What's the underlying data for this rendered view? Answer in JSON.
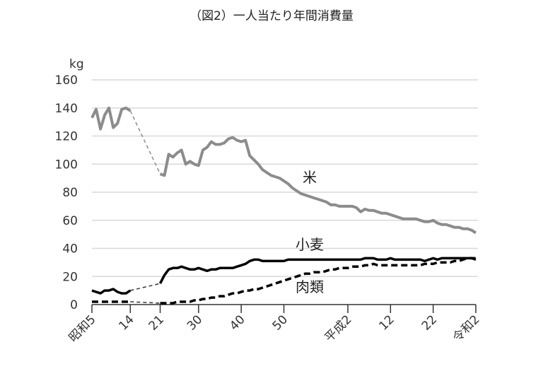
{
  "chart_data": {
    "type": "line",
    "title": "（図2）一人当たり年間消費量",
    "ylabel": "kg",
    "xlabel": "",
    "ylim": [
      0,
      160
    ],
    "yticks": [
      0,
      20,
      40,
      60,
      80,
      100,
      120,
      140,
      160
    ],
    "xlim": [
      1930,
      2020
    ],
    "xticks": [
      {
        "year": 1930,
        "label": "昭和5"
      },
      {
        "year": 1939,
        "label": "14"
      },
      {
        "year": 1946,
        "label": "21"
      },
      {
        "year": 1955,
        "label": "30"
      },
      {
        "year": 1965,
        "label": "40"
      },
      {
        "year": 1975,
        "label": "50"
      },
      {
        "year": 1990,
        "label": "平成2"
      },
      {
        "year": 2000,
        "label": "12"
      },
      {
        "year": 2010,
        "label": "22"
      },
      {
        "year": 2020,
        "label": "令和2"
      }
    ],
    "grid": true,
    "gap": [
      1939,
      1946
    ],
    "series": [
      {
        "name": "米",
        "color": "#8c8c8c",
        "style": "solid",
        "prewar": [
          133,
          139,
          125,
          135,
          140,
          126,
          129,
          139,
          140,
          138
        ],
        "postwar": [
          93,
          92,
          107,
          105,
          108,
          110,
          100,
          102,
          100,
          99,
          110,
          112,
          116,
          114,
          114,
          115,
          118,
          119,
          117,
          116,
          117,
          106,
          103,
          100,
          96,
          94,
          92,
          91,
          90,
          88,
          86,
          83,
          81,
          79,
          78,
          77,
          76,
          75,
          74,
          73,
          71,
          71,
          70,
          70,
          70,
          70,
          69,
          66,
          68,
          67,
          67,
          66,
          65,
          65,
          64,
          63,
          62,
          61,
          61,
          61,
          61,
          60,
          59,
          59,
          60,
          58,
          57,
          57,
          56,
          55,
          55,
          54,
          54,
          53,
          51
        ]
      },
      {
        "name": "小麦",
        "color": "#000000",
        "style": "solid",
        "prewar": [
          10,
          9,
          8,
          10,
          10,
          11,
          9,
          8,
          8,
          10
        ],
        "postwar": [
          15,
          21,
          25,
          26,
          26,
          27,
          26,
          25,
          25,
          26,
          25,
          24,
          25,
          25,
          26,
          26,
          26,
          26,
          27,
          28,
          29,
          31,
          32,
          32,
          31,
          31,
          31,
          31,
          31,
          31,
          32,
          32,
          32,
          32,
          32,
          32,
          32,
          32,
          32,
          32,
          32,
          32,
          32,
          32,
          32,
          32,
          32,
          32,
          33,
          33,
          33,
          32,
          32,
          32,
          33,
          32,
          32,
          32,
          32,
          32,
          32,
          32,
          31,
          32,
          33,
          32,
          33,
          33,
          33,
          33,
          33,
          33,
          33,
          33,
          32
        ]
      },
      {
        "name": "肉類",
        "color": "#000000",
        "style": "dashed",
        "prewar": [
          2,
          2,
          2,
          2,
          2,
          2,
          2,
          2,
          2,
          2
        ],
        "postwar": [
          1,
          1,
          1,
          1,
          2,
          2,
          2,
          2,
          3,
          3,
          4,
          4,
          5,
          5,
          6,
          6,
          7,
          8,
          8,
          9,
          10,
          10,
          11,
          11,
          12,
          13,
          14,
          15,
          16,
          17,
          18,
          19,
          20,
          21,
          22,
          22,
          23,
          23,
          23,
          24,
          25,
          25,
          26,
          26,
          26,
          27,
          27,
          27,
          28,
          28,
          29,
          28,
          28,
          28,
          28,
          28,
          28,
          28,
          28,
          28,
          28,
          28,
          29,
          29,
          29,
          30,
          30,
          30,
          30,
          31,
          31,
          32,
          33,
          33,
          33
        ]
      }
    ]
  }
}
